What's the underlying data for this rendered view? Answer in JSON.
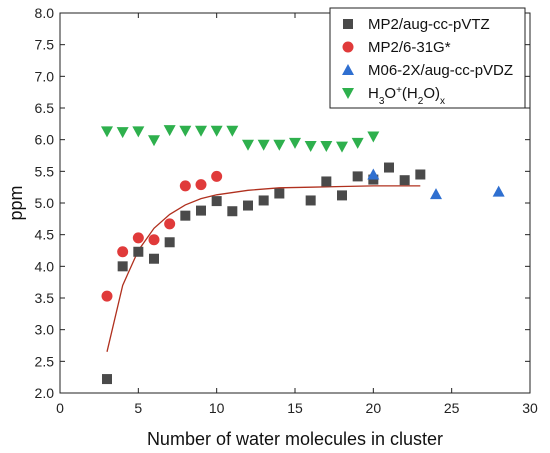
{
  "chart_data": {
    "type": "scatter",
    "xlabel": "Number of water molecules in cluster",
    "ylabel": "ppm",
    "xlim": [
      0,
      30
    ],
    "ylim": [
      2.0,
      8.0
    ],
    "xticks": [
      "0",
      "5",
      "10",
      "15",
      "20",
      "25",
      "30"
    ],
    "yticks": [
      "2.0",
      "2.5",
      "3.0",
      "3.5",
      "4.0",
      "4.5",
      "5.0",
      "5.5",
      "6.0",
      "6.5",
      "7.0",
      "7.5",
      "8.0"
    ],
    "grid": false,
    "legend_position": "top-right",
    "series": [
      {
        "name": "MP2/aug-cc-pVTZ",
        "marker": "square",
        "color": "#4a4a4a",
        "points": [
          [
            3,
            2.22
          ],
          [
            4,
            4.0
          ],
          [
            5,
            4.23
          ],
          [
            6,
            4.12
          ],
          [
            7,
            4.38
          ],
          [
            8,
            4.8
          ],
          [
            9,
            4.88
          ],
          [
            10,
            5.03
          ],
          [
            11,
            4.87
          ],
          [
            12,
            4.96
          ],
          [
            13,
            5.04
          ],
          [
            14,
            5.15
          ],
          [
            16,
            5.04
          ],
          [
            17,
            5.34
          ],
          [
            18,
            5.12
          ],
          [
            19,
            5.42
          ],
          [
            20,
            5.37
          ],
          [
            21,
            5.56
          ],
          [
            22,
            5.36
          ],
          [
            23,
            5.45
          ]
        ]
      },
      {
        "name": "MP2/6-31G*",
        "marker": "circle",
        "color": "#e03a3a",
        "points": [
          [
            3,
            3.53
          ],
          [
            4,
            4.23
          ],
          [
            5,
            4.45
          ],
          [
            6,
            4.42
          ],
          [
            7,
            4.67
          ],
          [
            8,
            5.27
          ],
          [
            9,
            5.29
          ],
          [
            10,
            5.42
          ]
        ]
      },
      {
        "name": "M06-2X/aug-cc-pVDZ",
        "marker": "triangle-up",
        "color": "#2f6fd0",
        "points": [
          [
            20,
            5.45
          ],
          [
            24,
            5.14
          ],
          [
            28,
            5.18
          ]
        ]
      },
      {
        "name_parts": [
          "H",
          "3",
          "O",
          "+",
          "(H",
          "2",
          "O)",
          "x"
        ],
        "marker": "triangle-down",
        "color": "#2eb04d",
        "points": [
          [
            3,
            6.13
          ],
          [
            4,
            6.12
          ],
          [
            5,
            6.13
          ],
          [
            6,
            5.99
          ],
          [
            7,
            6.15
          ],
          [
            8,
            6.14
          ],
          [
            9,
            6.14
          ],
          [
            10,
            6.14
          ],
          [
            11,
            6.14
          ],
          [
            12,
            5.92
          ],
          [
            13,
            5.92
          ],
          [
            14,
            5.92
          ],
          [
            15,
            5.95
          ],
          [
            16,
            5.9
          ],
          [
            17,
            5.9
          ],
          [
            18,
            5.89
          ],
          [
            19,
            5.95
          ],
          [
            20,
            6.05
          ]
        ]
      }
    ],
    "fit_curve": {
      "color": "#b0301e",
      "points": [
        [
          3,
          2.65
        ],
        [
          4,
          3.7
        ],
        [
          5,
          4.25
        ],
        [
          6,
          4.6
        ],
        [
          7,
          4.82
        ],
        [
          8,
          4.97
        ],
        [
          9,
          5.07
        ],
        [
          10,
          5.13
        ],
        [
          12,
          5.2
        ],
        [
          14,
          5.24
        ],
        [
          16,
          5.25
        ],
        [
          18,
          5.26
        ],
        [
          20,
          5.27
        ],
        [
          23,
          5.27
        ]
      ]
    }
  }
}
